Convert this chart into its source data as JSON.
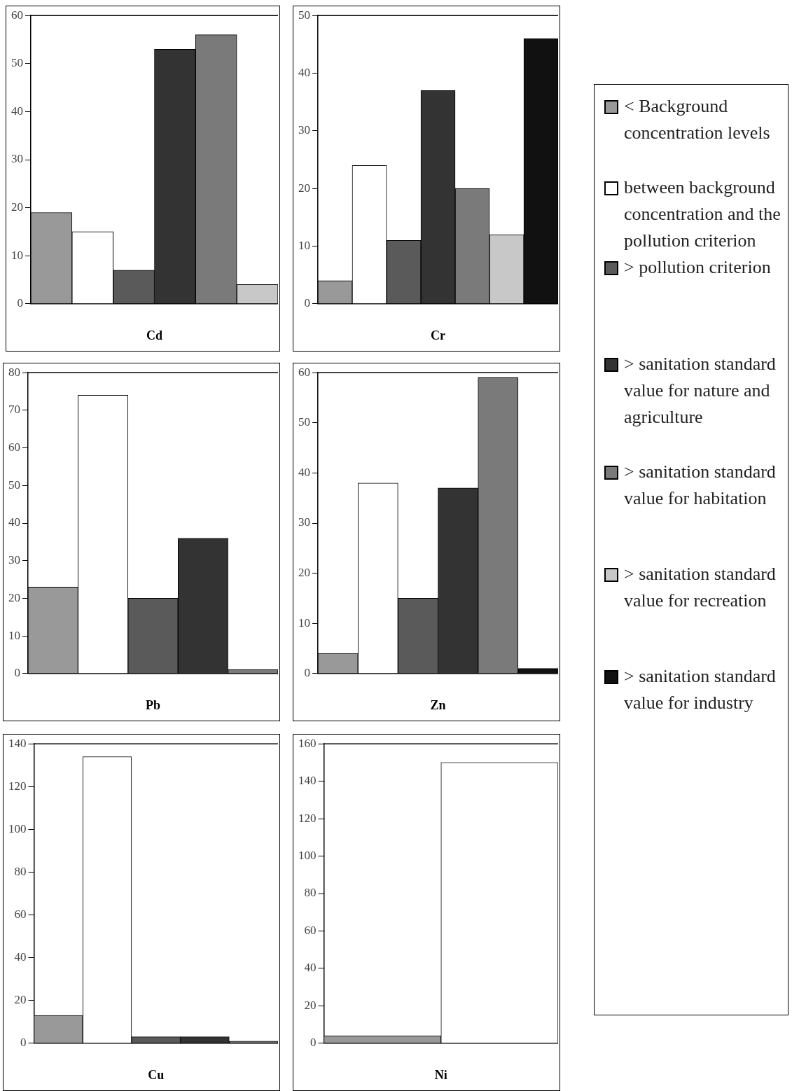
{
  "chart_data": [
    {
      "type": "bar",
      "xlabel": "Cd",
      "categories": [
        null,
        null,
        null,
        null,
        null,
        null
      ],
      "stacked": true,
      "ylim": [
        0,
        60
      ],
      "yticks": [
        0,
        10,
        20,
        30,
        40,
        50,
        60
      ],
      "grid": false,
      "legend": "right",
      "series": [
        {
          "name": "< Background concentration levels",
          "color": "#999999",
          "values": [
            19,
            null,
            null,
            null,
            null,
            null
          ]
        },
        {
          "name": "between background concentration and the pollution criterion",
          "color": "#ffffff",
          "values": [
            null,
            15,
            null,
            null,
            null,
            null
          ]
        },
        {
          "name": "> pollution criterion",
          "color": "#5a5a5a",
          "values": [
            null,
            null,
            7,
            null,
            null,
            null
          ]
        },
        {
          "name": "> sanitation standard value for nature and agriculture",
          "color": "#333333",
          "values": [
            null,
            null,
            null,
            53,
            null,
            null
          ]
        },
        {
          "name": "> sanitation standard value for habitation",
          "color": "#7a7a7a",
          "values": [
            null,
            null,
            null,
            null,
            56,
            null
          ]
        },
        {
          "name": "> sanitation standard value for recreation",
          "color": "#c8c8c8",
          "values": [
            null,
            null,
            null,
            null,
            null,
            4
          ]
        },
        {
          "name": "> sanitation standard value for industry",
          "color": "#111111",
          "values": [
            null,
            null,
            null,
            null,
            null,
            null
          ]
        }
      ]
    },
    {
      "type": "bar",
      "xlabel": "Cr",
      "categories": [
        null,
        null,
        null,
        null,
        null,
        null,
        null
      ],
      "stacked": true,
      "ylim": [
        0,
        50
      ],
      "yticks": [
        0,
        10,
        20,
        30,
        40,
        50
      ],
      "grid": false,
      "series": [
        {
          "color": "#999999",
          "values": [
            4,
            null,
            null,
            null,
            null,
            null,
            null
          ]
        },
        {
          "color": "#ffffff",
          "values": [
            null,
            24,
            null,
            null,
            null,
            null,
            null
          ]
        },
        {
          "color": "#5a5a5a",
          "values": [
            null,
            null,
            11,
            null,
            null,
            null,
            null
          ]
        },
        {
          "color": "#333333",
          "values": [
            null,
            null,
            null,
            37,
            null,
            null,
            null
          ]
        },
        {
          "color": "#7a7a7a",
          "values": [
            null,
            null,
            null,
            null,
            20,
            null,
            null
          ]
        },
        {
          "color": "#c8c8c8",
          "values": [
            null,
            null,
            null,
            null,
            null,
            12,
            null
          ]
        },
        {
          "color": "#111111",
          "values": [
            null,
            null,
            null,
            null,
            null,
            null,
            46
          ]
        }
      ]
    },
    {
      "type": "bar",
      "xlabel": "Pb",
      "categories": [
        null,
        null,
        null,
        null,
        null
      ],
      "stacked": true,
      "ylim": [
        0,
        80
      ],
      "yticks": [
        0,
        10,
        20,
        30,
        40,
        50,
        60,
        70,
        80
      ],
      "grid": false,
      "series": [
        {
          "color": "#999999",
          "values": [
            23,
            null,
            null,
            null,
            null
          ]
        },
        {
          "color": "#ffffff",
          "values": [
            null,
            74,
            null,
            null,
            null
          ]
        },
        {
          "color": "#5a5a5a",
          "values": [
            null,
            null,
            20,
            null,
            null
          ]
        },
        {
          "color": "#333333",
          "values": [
            null,
            null,
            null,
            36,
            null
          ]
        },
        {
          "color": "#7a7a7a",
          "values": [
            null,
            null,
            null,
            null,
            1
          ]
        },
        {
          "color": "#c8c8c8",
          "values": [
            null,
            null,
            null,
            null,
            null
          ]
        },
        {
          "color": "#111111",
          "values": [
            null,
            null,
            null,
            null,
            null
          ]
        }
      ]
    },
    {
      "type": "bar",
      "xlabel": "Zn",
      "categories": [
        null,
        null,
        null,
        null,
        null,
        null
      ],
      "stacked": true,
      "ylim": [
        0,
        60
      ],
      "yticks": [
        0,
        10,
        20,
        30,
        40,
        50,
        60
      ],
      "grid": false,
      "series": [
        {
          "color": "#999999",
          "values": [
            4,
            null,
            null,
            null,
            null,
            null
          ]
        },
        {
          "color": "#ffffff",
          "values": [
            null,
            38,
            null,
            null,
            null,
            null
          ]
        },
        {
          "color": "#5a5a5a",
          "values": [
            null,
            null,
            15,
            null,
            null,
            null
          ]
        },
        {
          "color": "#333333",
          "values": [
            null,
            null,
            null,
            37,
            null,
            null
          ]
        },
        {
          "color": "#7a7a7a",
          "values": [
            null,
            null,
            null,
            null,
            59,
            null
          ]
        },
        {
          "color": "#c8c8c8",
          "values": [
            null,
            null,
            null,
            null,
            null,
            null
          ]
        },
        {
          "color": "#111111",
          "values": [
            null,
            null,
            null,
            null,
            null,
            1
          ]
        }
      ]
    },
    {
      "type": "bar",
      "xlabel": "Cu",
      "categories": [
        null,
        null,
        null,
        null,
        null
      ],
      "stacked": true,
      "ylim": [
        0,
        140
      ],
      "yticks": [
        0,
        20,
        40,
        60,
        80,
        100,
        120,
        140
      ],
      "grid": false,
      "series": [
        {
          "color": "#999999",
          "values": [
            13,
            null,
            null,
            null,
            null
          ]
        },
        {
          "color": "#ffffff",
          "values": [
            null,
            134,
            null,
            null,
            null
          ]
        },
        {
          "color": "#5a5a5a",
          "values": [
            null,
            null,
            3,
            null,
            null
          ]
        },
        {
          "color": "#333333",
          "values": [
            null,
            null,
            null,
            3,
            null
          ]
        },
        {
          "color": "#7a7a7a",
          "values": [
            null,
            null,
            null,
            null,
            1
          ]
        },
        {
          "color": "#c8c8c8",
          "values": [
            null,
            null,
            null,
            null,
            null
          ]
        },
        {
          "color": "#111111",
          "values": [
            null,
            null,
            null,
            null,
            null
          ]
        }
      ]
    },
    {
      "type": "bar",
      "xlabel": "Ni",
      "categories": [
        null,
        null
      ],
      "stacked": true,
      "ylim": [
        0,
        160
      ],
      "yticks": [
        0,
        20,
        40,
        60,
        80,
        100,
        120,
        140,
        160
      ],
      "grid": false,
      "series": [
        {
          "color": "#999999",
          "values": [
            4,
            null
          ]
        },
        {
          "color": "#ffffff",
          "values": [
            null,
            150
          ]
        },
        {
          "color": "#5a5a5a",
          "values": [
            null,
            null
          ]
        },
        {
          "color": "#333333",
          "values": [
            null,
            null
          ]
        },
        {
          "color": "#7a7a7a",
          "values": [
            null,
            null
          ]
        },
        {
          "color": "#c8c8c8",
          "values": [
            null,
            null
          ]
        },
        {
          "color": "#111111",
          "values": [
            null,
            null
          ]
        }
      ]
    }
  ]
}
